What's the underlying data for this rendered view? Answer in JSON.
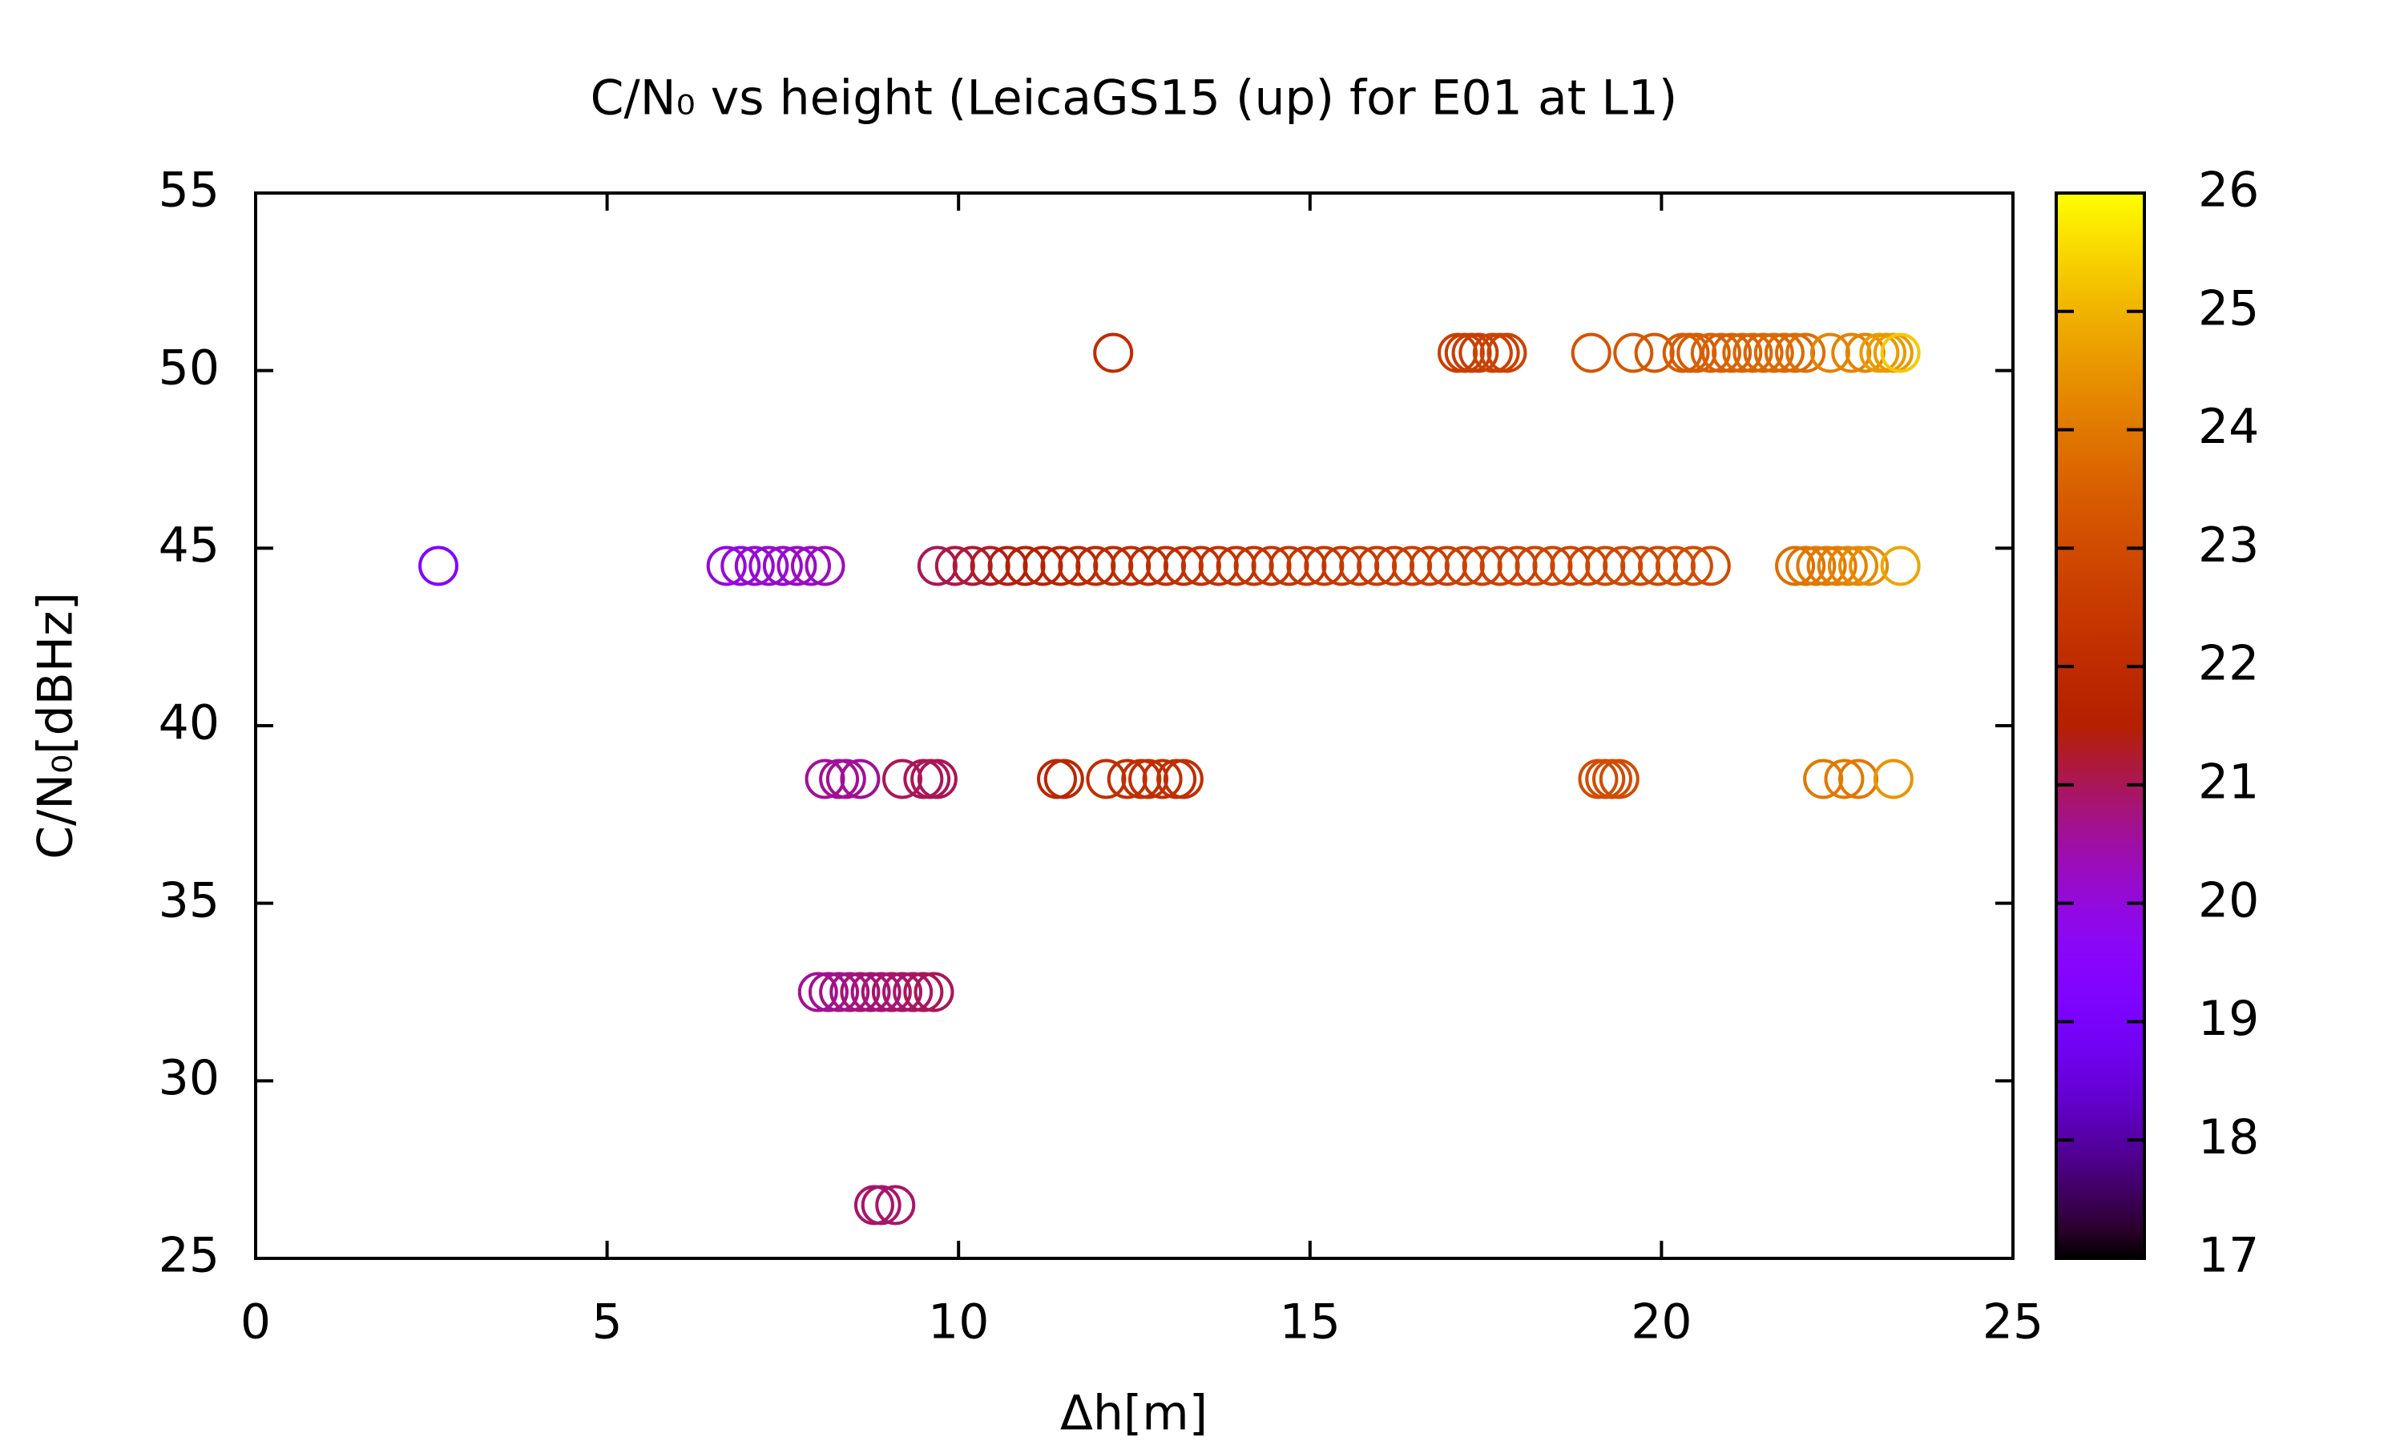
{
  "chart_data": {
    "type": "scatter",
    "title": "C/N₀ vs height (LeicaGS15 (up) for E01 at L1)",
    "x_label": "Δh[m]",
    "y_label": "C/N₀[dBHz]",
    "xlim": [
      0,
      25
    ],
    "xticks": [
      0,
      5,
      10,
      15,
      20,
      25
    ],
    "ylim": [
      25,
      55
    ],
    "yticks": [
      25,
      30,
      35,
      40,
      45,
      50,
      55
    ],
    "zlim": [
      17,
      26
    ],
    "zticks": [
      17,
      18,
      19,
      20,
      21,
      22,
      23,
      24,
      25,
      26
    ],
    "palette": "gnuplot rgbformulae 7,5,15",
    "x": [
      12.2,
      17.1,
      17.2,
      17.3,
      17.4,
      17.6,
      17.7,
      17.8,
      19.0,
      19.6,
      19.9,
      20.3,
      20.4,
      20.5,
      20.7,
      20.85,
      21.0,
      21.15,
      21.3,
      21.45,
      21.6,
      21.75,
      21.9,
      22.05,
      22.4,
      22.7,
      22.9,
      23.1,
      23.2,
      23.3,
      23.4,
      2.6,
      6.7,
      6.9,
      7.1,
      7.3,
      7.5,
      7.7,
      7.9,
      8.1,
      9.7,
      9.95,
      10.2,
      10.45,
      10.7,
      10.95,
      11.2,
      11.45,
      11.7,
      11.95,
      12.2,
      12.45,
      12.7,
      12.95,
      13.2,
      13.45,
      13.7,
      13.95,
      14.2,
      14.45,
      14.7,
      14.95,
      15.2,
      15.45,
      15.7,
      15.95,
      16.2,
      16.45,
      16.7,
      16.95,
      17.2,
      17.45,
      17.7,
      17.95,
      18.2,
      18.45,
      18.7,
      18.95,
      19.2,
      19.45,
      19.7,
      19.95,
      20.2,
      20.45,
      20.7,
      21.9,
      22.05,
      22.2,
      22.35,
      22.5,
      22.65,
      22.8,
      22.95,
      23.4,
      8.1,
      8.3,
      8.4,
      8.6,
      9.2,
      9.5,
      9.6,
      9.7,
      11.4,
      11.5,
      12.1,
      12.4,
      12.6,
      12.7,
      12.9,
      13.1,
      13.2,
      19.1,
      19.2,
      19.3,
      19.4,
      22.3,
      22.6,
      22.8,
      23.3,
      8.0,
      8.15,
      8.3,
      8.45,
      8.6,
      8.75,
      8.9,
      9.05,
      9.2,
      9.35,
      9.5,
      9.65,
      8.8,
      8.9,
      9.1
    ],
    "y": [
      50.5,
      50.5,
      50.5,
      50.5,
      50.5,
      50.5,
      50.5,
      50.5,
      50.5,
      50.5,
      50.5,
      50.5,
      50.5,
      50.5,
      50.5,
      50.5,
      50.5,
      50.5,
      50.5,
      50.5,
      50.5,
      50.5,
      50.5,
      50.5,
      50.5,
      50.5,
      50.5,
      50.5,
      50.5,
      50.5,
      50.5,
      44.5,
      44.5,
      44.5,
      44.5,
      44.5,
      44.5,
      44.5,
      44.5,
      44.5,
      44.5,
      44.5,
      44.5,
      44.5,
      44.5,
      44.5,
      44.5,
      44.5,
      44.5,
      44.5,
      44.5,
      44.5,
      44.5,
      44.5,
      44.5,
      44.5,
      44.5,
      44.5,
      44.5,
      44.5,
      44.5,
      44.5,
      44.5,
      44.5,
      44.5,
      44.5,
      44.5,
      44.5,
      44.5,
      44.5,
      44.5,
      44.5,
      44.5,
      44.5,
      44.5,
      44.5,
      44.5,
      44.5,
      44.5,
      44.5,
      44.5,
      44.5,
      44.5,
      44.5,
      44.5,
      44.5,
      44.5,
      44.5,
      44.5,
      44.5,
      44.5,
      44.5,
      44.5,
      44.5,
      38.5,
      38.5,
      38.5,
      38.5,
      38.5,
      38.5,
      38.5,
      38.5,
      38.5,
      38.5,
      38.5,
      38.5,
      38.5,
      38.5,
      38.5,
      38.5,
      38.5,
      38.5,
      38.5,
      38.5,
      38.5,
      38.5,
      38.5,
      38.5,
      38.5,
      32.5,
      32.5,
      32.5,
      32.5,
      32.5,
      32.5,
      32.5,
      32.5,
      32.5,
      32.5,
      32.5,
      32.5,
      26.5,
      26.5,
      26.5
    ],
    "z": [
      22.0,
      22.6,
      22.6,
      22.6,
      22.6,
      22.7,
      22.7,
      22.7,
      23.2,
      23.3,
      23.3,
      23.4,
      23.4,
      23.4,
      23.5,
      23.5,
      23.5,
      23.6,
      23.6,
      23.6,
      23.7,
      23.7,
      23.7,
      23.8,
      24.2,
      24.2,
      24.2,
      24.6,
      24.6,
      24.6,
      25.3,
      19.3,
      20.0,
      20.0,
      20.1,
      20.1,
      20.2,
      20.2,
      20.3,
      20.3,
      21.0,
      21.1,
      21.2,
      21.3,
      21.4,
      21.5,
      21.6,
      21.7,
      21.8,
      21.9,
      22.0,
      22.0,
      22.0,
      22.1,
      22.1,
      22.2,
      22.2,
      22.2,
      22.3,
      22.3,
      22.3,
      22.4,
      22.4,
      22.4,
      22.5,
      22.5,
      22.5,
      22.6,
      22.6,
      22.6,
      22.7,
      22.7,
      22.7,
      22.7,
      22.8,
      22.8,
      22.8,
      22.8,
      22.9,
      22.9,
      22.9,
      22.9,
      23.0,
      23.0,
      23.0,
      23.8,
      23.9,
      24.0,
      24.0,
      24.1,
      24.2,
      24.3,
      24.4,
      24.8,
      20.6,
      20.6,
      20.6,
      20.6,
      21.0,
      21.0,
      21.0,
      21.0,
      21.8,
      21.8,
      22.1,
      22.1,
      22.1,
      22.1,
      22.1,
      22.1,
      22.1,
      23.0,
      23.0,
      23.0,
      23.0,
      24.0,
      24.0,
      24.0,
      24.5,
      20.6,
      20.6,
      20.7,
      20.7,
      20.8,
      20.8,
      20.8,
      20.9,
      20.9,
      20.9,
      21.0,
      21.0,
      20.9,
      20.9,
      20.9
    ]
  }
}
